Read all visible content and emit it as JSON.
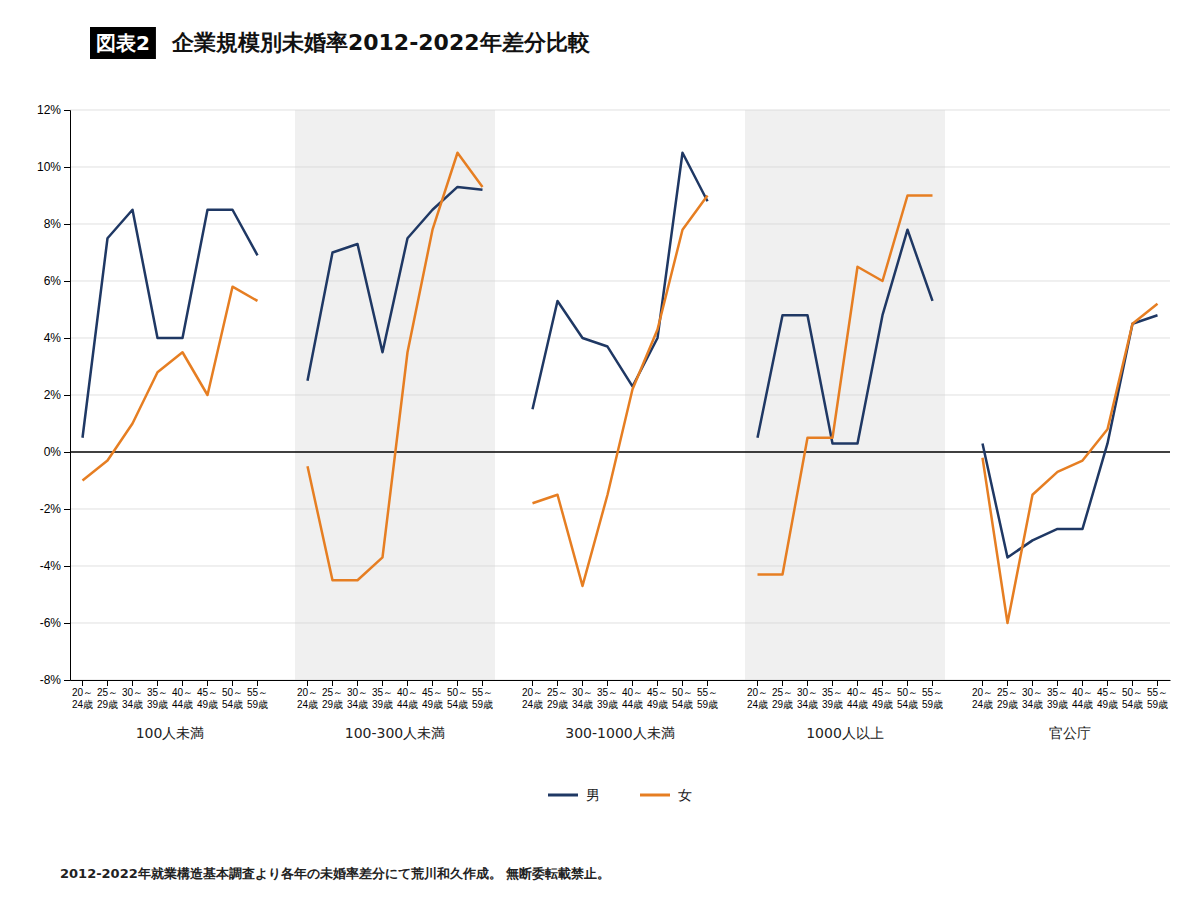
{
  "chart_data": {
    "type": "line",
    "title": "企業規模別未婚率2012-2022年差分比較",
    "subtitle": "2012-2022年就業構造基本調査より各年の未婚率差分にて荒川和久作成。 無断委転載禁止。",
    "annotations": [
      "図表2"
    ],
    "groups": [
      "100人未満",
      "100-300人未満",
      "300-1000人未満",
      "1000人以上",
      "官公庁"
    ],
    "categories": [
      "20～\n24歳",
      "25～\n29歳",
      "30～\n34歳",
      "35～\n39歳",
      "40～\n44歳",
      "45～\n49歳",
      "50～\n54歳",
      "55～\n59歳",
      null,
      "20～\n24歳",
      "25～\n29歳",
      "30～\n34歳",
      "35～\n39歳",
      "40～\n44歳",
      "45～\n49歳",
      "50～\n54歳",
      "55～\n59歳",
      null,
      "20～\n24歳",
      "25～\n29歳",
      "30～\n34歳",
      "35～\n39歳",
      "40～\n44歳",
      "45～\n49歳",
      "50～\n54歳",
      "55～\n59歳",
      null,
      "20～\n24歳",
      "25～\n29歳",
      "30～\n34歳",
      "35～\n39歳",
      "40～\n44歳",
      "45～\n49歳",
      "50～\n54歳",
      "55～\n59歳",
      null,
      "20～\n24歳",
      "25～\n29歳",
      "30～\n34歳",
      "35～\n39歳",
      "40～\n44歳",
      "45～\n49歳",
      "50～\n54歳",
      "55～\n59歳"
    ],
    "series": [
      {
        "name": "男",
        "color": "#1f3864",
        "values": [
          0.5,
          7.5,
          8.5,
          4.0,
          4.0,
          8.5,
          8.5,
          6.9,
          null,
          2.5,
          7.0,
          7.3,
          3.5,
          7.5,
          8.5,
          9.3,
          9.2,
          null,
          1.5,
          5.3,
          4.0,
          3.7,
          2.3,
          4.0,
          10.5,
          8.8,
          null,
          0.5,
          4.8,
          4.8,
          0.3,
          0.3,
          4.8,
          7.8,
          5.3,
          null,
          0.3,
          -3.7,
          -3.1,
          -2.7,
          -2.7,
          0.3,
          4.5,
          4.8
        ]
      },
      {
        "name": "女",
        "color": "#e67e22",
        "values": [
          -1.0,
          -0.3,
          1.0,
          2.8,
          3.5,
          2.0,
          5.8,
          5.3,
          null,
          -0.5,
          -4.5,
          -4.5,
          -3.7,
          3.5,
          7.8,
          10.5,
          9.3,
          null,
          -1.8,
          -1.5,
          -4.7,
          -1.5,
          2.2,
          4.3,
          7.8,
          9.0,
          null,
          -4.3,
          -4.3,
          0.5,
          0.5,
          6.5,
          6.0,
          9.0,
          9.0,
          null,
          -0.2,
          -6.0,
          -1.5,
          -0.7,
          -0.3,
          0.8,
          4.5,
          5.2
        ]
      }
    ],
    "ylim": [
      -8,
      12
    ],
    "yticks": [
      {
        "value": -8,
        "label": "-8%"
      },
      {
        "value": -6,
        "label": "-6%"
      },
      {
        "value": -4,
        "label": "-4%"
      },
      {
        "value": -2,
        "label": "-2%"
      },
      {
        "value": 0,
        "label": "0%"
      },
      {
        "value": 2,
        "label": "2%"
      },
      {
        "value": 4,
        "label": "4%"
      },
      {
        "value": 6,
        "label": "6%"
      },
      {
        "value": 8,
        "label": "8%"
      },
      {
        "value": 10,
        "label": "10%"
      },
      {
        "value": 12,
        "label": "12%"
      }
    ],
    "grid": true,
    "legend": "bottom"
  }
}
